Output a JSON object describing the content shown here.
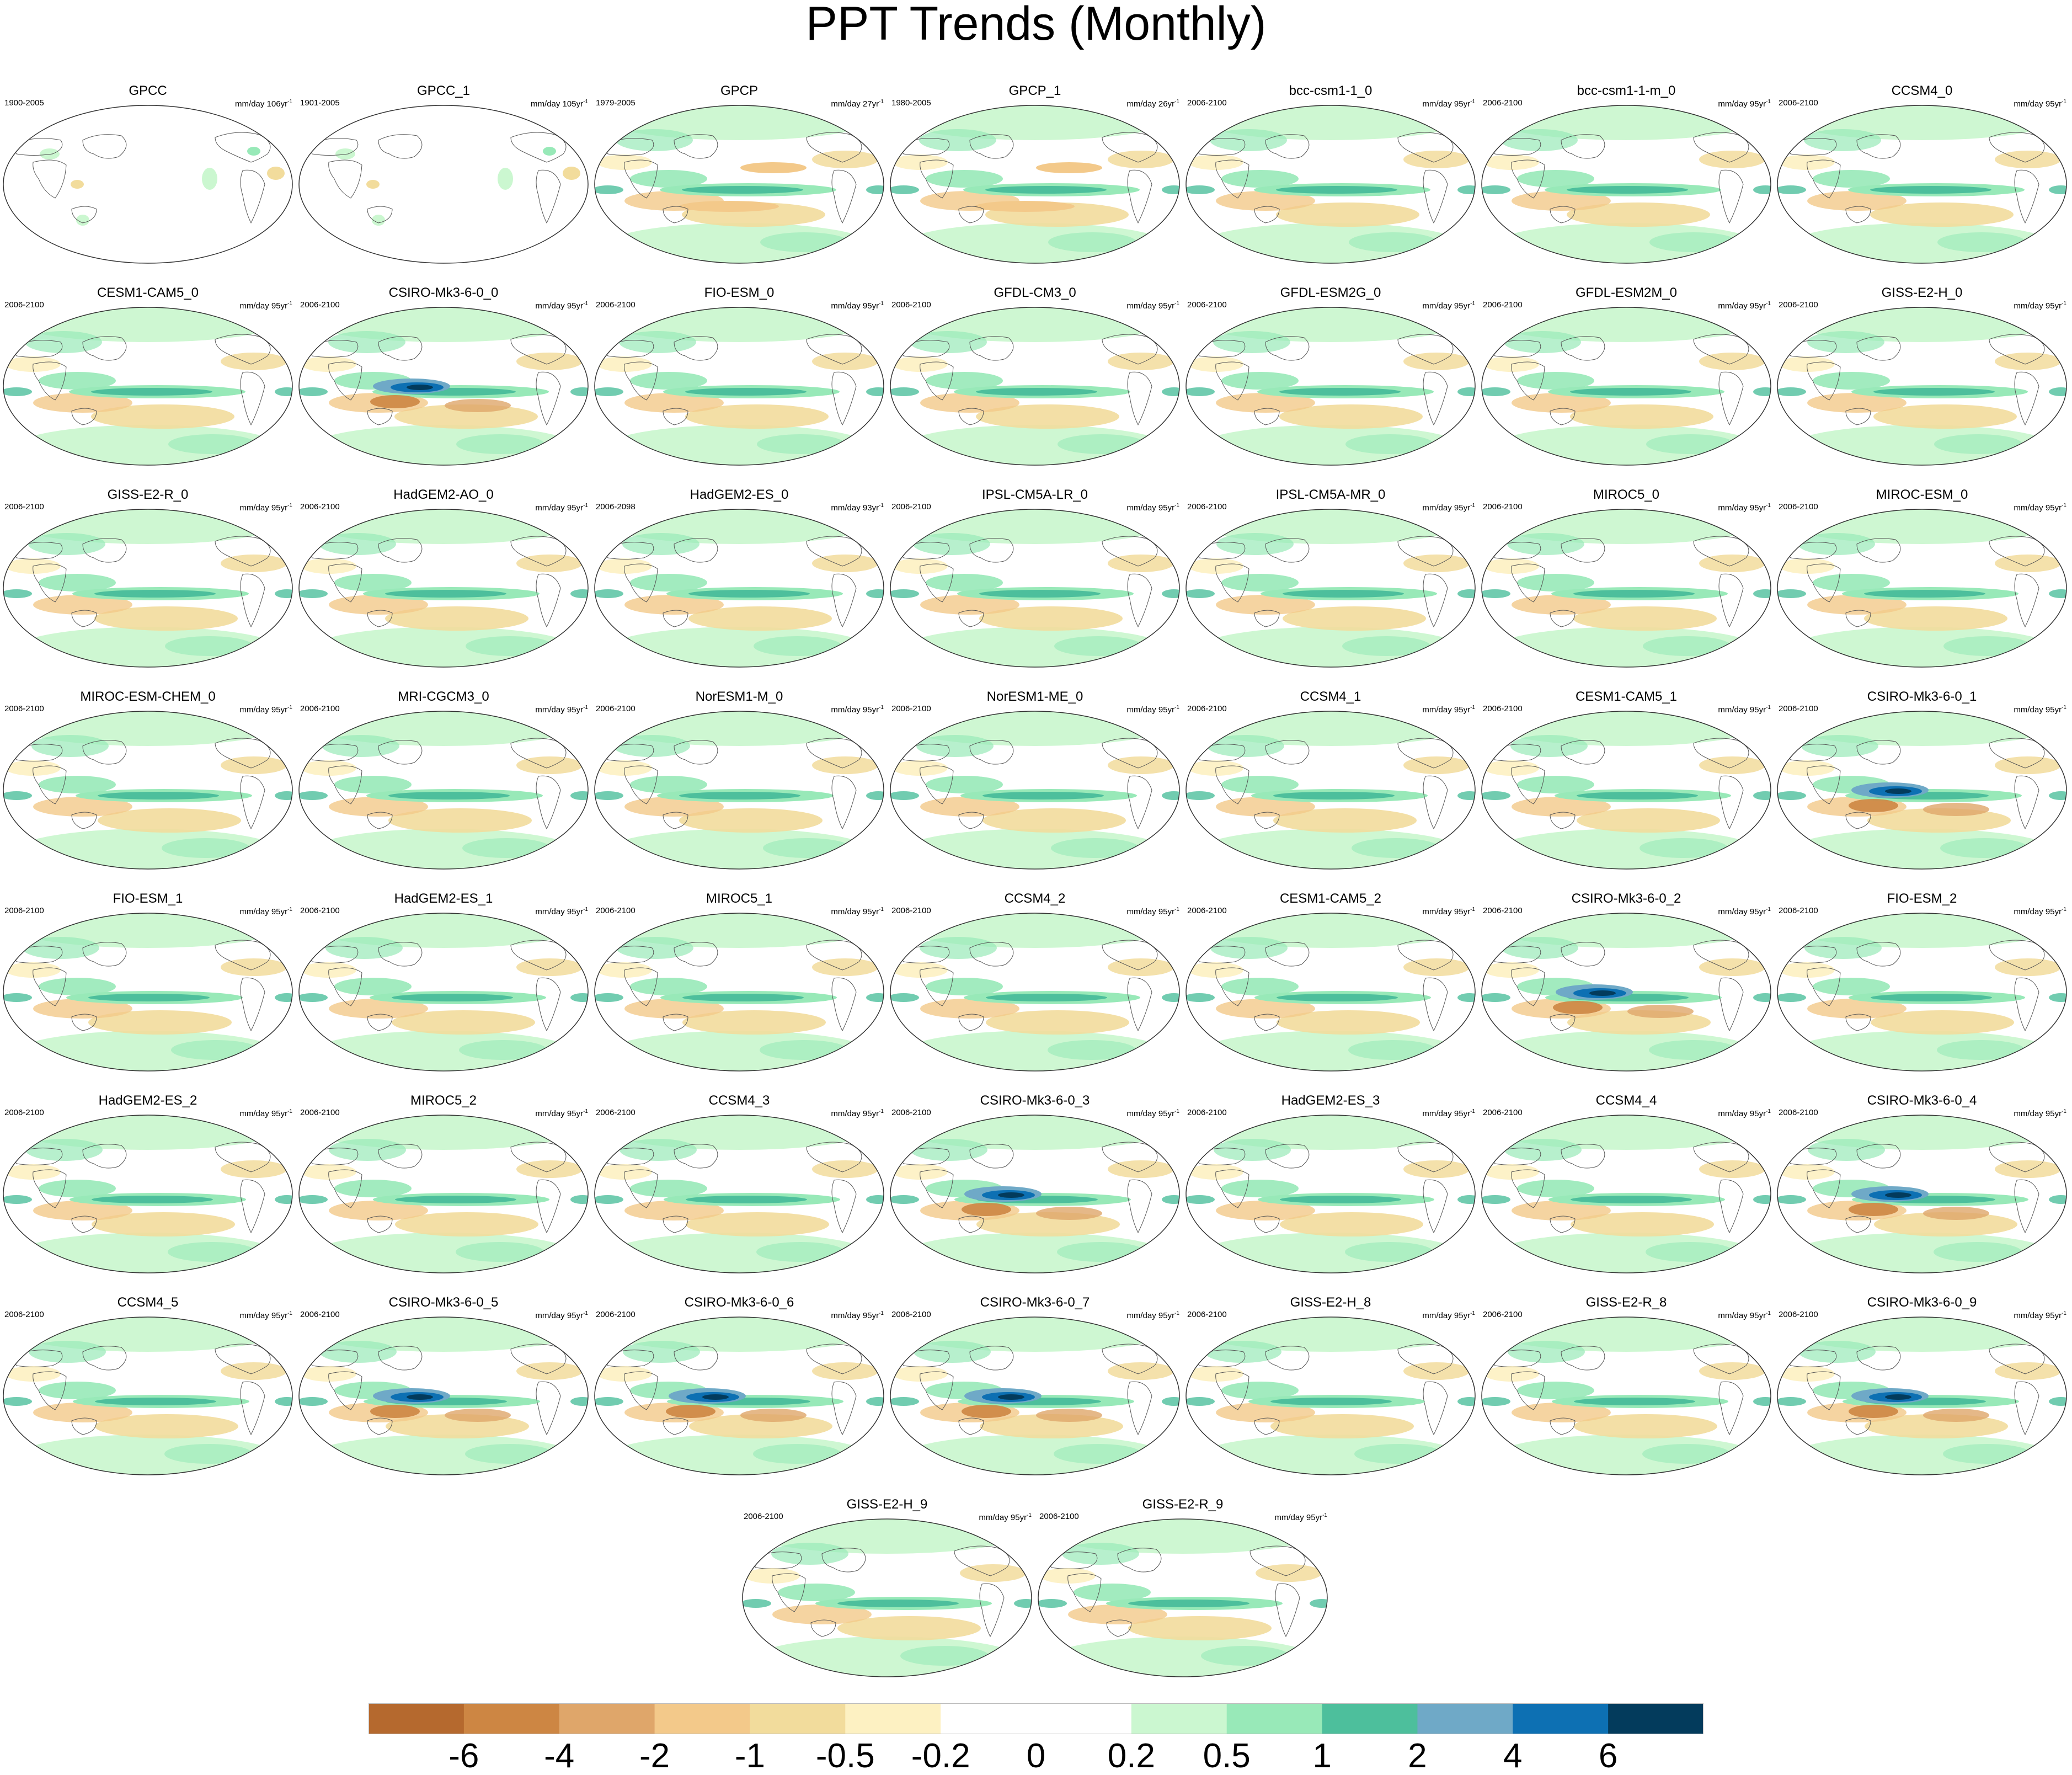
{
  "title": "PPT Trends (Monthly)",
  "units_prefix": "mm/day",
  "colorbar": {
    "colors": [
      "#b5692e",
      "#cd8643",
      "#dfa66a",
      "#f3c98a",
      "#f2dc9c",
      "#fdf1c2",
      "#ffffff",
      "#ffffff",
      "#cbf7d0",
      "#98e9b8",
      "#4dbf9c",
      "#6fa9c7",
      "#0d70b3",
      "#033b5c"
    ],
    "labels": [
      "-6",
      "-4",
      "-2",
      "-1",
      "-0.5",
      "-0.2",
      "0",
      "0.2",
      "0.5",
      "1",
      "2",
      "4",
      "6"
    ]
  },
  "panels": [
    {
      "title": "GPCC",
      "period": "1900-2005",
      "units": "mm/day 106yr",
      "style": "obs"
    },
    {
      "title": "GPCC_1",
      "period": "1901-2005",
      "units": "mm/day 105yr",
      "style": "obs"
    },
    {
      "title": "GPCP",
      "period": "1979-2005",
      "units": "mm/day 27yr",
      "style": "mixed"
    },
    {
      "title": "GPCP_1",
      "period": "1980-2005",
      "units": "mm/day 26yr",
      "style": "mixed"
    },
    {
      "title": "bcc-csm1-1_0",
      "period": "2006-2100",
      "units": "mm/day 95yr",
      "style": "model"
    },
    {
      "title": "bcc-csm1-1-m_0",
      "period": "2006-2100",
      "units": "mm/day 95yr",
      "style": "model"
    },
    {
      "title": "CCSM4_0",
      "period": "2006-2100",
      "units": "mm/day 95yr",
      "style": "model"
    },
    {
      "title": "CESM1-CAM5_0",
      "period": "2006-2100",
      "units": "mm/day 95yr",
      "style": "model"
    },
    {
      "title": "CSIRO-Mk3-6-0_0",
      "period": "2006-2100",
      "units": "mm/day 95yr",
      "style": "strong"
    },
    {
      "title": "FIO-ESM_0",
      "period": "2006-2100",
      "units": "mm/day 95yr",
      "style": "model"
    },
    {
      "title": "GFDL-CM3_0",
      "period": "2006-2100",
      "units": "mm/day 95yr",
      "style": "model"
    },
    {
      "title": "GFDL-ESM2G_0",
      "period": "2006-2100",
      "units": "mm/day 95yr",
      "style": "model"
    },
    {
      "title": "GFDL-ESM2M_0",
      "period": "2006-2100",
      "units": "mm/day 95yr",
      "style": "model"
    },
    {
      "title": "GISS-E2-H_0",
      "period": "2006-2100",
      "units": "mm/day 95yr",
      "style": "model"
    },
    {
      "title": "GISS-E2-R_0",
      "period": "2006-2100",
      "units": "mm/day 95yr",
      "style": "model"
    },
    {
      "title": "HadGEM2-AO_0",
      "period": "2006-2100",
      "units": "mm/day 95yr",
      "style": "model"
    },
    {
      "title": "HadGEM2-ES_0",
      "period": "2006-2098",
      "units": "mm/day 93yr",
      "style": "model"
    },
    {
      "title": "IPSL-CM5A-LR_0",
      "period": "2006-2100",
      "units": "mm/day 95yr",
      "style": "model"
    },
    {
      "title": "IPSL-CM5A-MR_0",
      "period": "2006-2100",
      "units": "mm/day 95yr",
      "style": "model"
    },
    {
      "title": "MIROC5_0",
      "period": "2006-2100",
      "units": "mm/day 95yr",
      "style": "model"
    },
    {
      "title": "MIROC-ESM_0",
      "period": "2006-2100",
      "units": "mm/day 95yr",
      "style": "model"
    },
    {
      "title": "MIROC-ESM-CHEM_0",
      "period": "2006-2100",
      "units": "mm/day 95yr",
      "style": "model"
    },
    {
      "title": "MRI-CGCM3_0",
      "period": "2006-2100",
      "units": "mm/day 95yr",
      "style": "model"
    },
    {
      "title": "NorESM1-M_0",
      "period": "2006-2100",
      "units": "mm/day 95yr",
      "style": "model"
    },
    {
      "title": "NorESM1-ME_0",
      "period": "2006-2100",
      "units": "mm/day 95yr",
      "style": "model"
    },
    {
      "title": "CCSM4_1",
      "period": "2006-2100",
      "units": "mm/day 95yr",
      "style": "model"
    },
    {
      "title": "CESM1-CAM5_1",
      "period": "2006-2100",
      "units": "mm/day 95yr",
      "style": "model"
    },
    {
      "title": "CSIRO-Mk3-6-0_1",
      "period": "2006-2100",
      "units": "mm/day 95yr",
      "style": "strong"
    },
    {
      "title": "FIO-ESM_1",
      "period": "2006-2100",
      "units": "mm/day 95yr",
      "style": "model"
    },
    {
      "title": "HadGEM2-ES_1",
      "period": "2006-2100",
      "units": "mm/day 95yr",
      "style": "model"
    },
    {
      "title": "MIROC5_1",
      "period": "2006-2100",
      "units": "mm/day 95yr",
      "style": "model"
    },
    {
      "title": "CCSM4_2",
      "period": "2006-2100",
      "units": "mm/day 95yr",
      "style": "model"
    },
    {
      "title": "CESM1-CAM5_2",
      "period": "2006-2100",
      "units": "mm/day 95yr",
      "style": "model"
    },
    {
      "title": "CSIRO-Mk3-6-0_2",
      "period": "2006-2100",
      "units": "mm/day 95yr",
      "style": "strong"
    },
    {
      "title": "FIO-ESM_2",
      "period": "2006-2100",
      "units": "mm/day 95yr",
      "style": "model"
    },
    {
      "title": "HadGEM2-ES_2",
      "period": "2006-2100",
      "units": "mm/day 95yr",
      "style": "model"
    },
    {
      "title": "MIROC5_2",
      "period": "2006-2100",
      "units": "mm/day 95yr",
      "style": "model"
    },
    {
      "title": "CCSM4_3",
      "period": "2006-2100",
      "units": "mm/day 95yr",
      "style": "model"
    },
    {
      "title": "CSIRO-Mk3-6-0_3",
      "period": "2006-2100",
      "units": "mm/day 95yr",
      "style": "strong"
    },
    {
      "title": "HadGEM2-ES_3",
      "period": "2006-2100",
      "units": "mm/day 95yr",
      "style": "model"
    },
    {
      "title": "CCSM4_4",
      "period": "2006-2100",
      "units": "mm/day 95yr",
      "style": "model"
    },
    {
      "title": "CSIRO-Mk3-6-0_4",
      "period": "2006-2100",
      "units": "mm/day 95yr",
      "style": "strong"
    },
    {
      "title": "CCSM4_5",
      "period": "2006-2100",
      "units": "mm/day 95yr",
      "style": "model"
    },
    {
      "title": "CSIRO-Mk3-6-0_5",
      "period": "2006-2100",
      "units": "mm/day 95yr",
      "style": "strong"
    },
    {
      "title": "CSIRO-Mk3-6-0_6",
      "period": "2006-2100",
      "units": "mm/day 95yr",
      "style": "strong"
    },
    {
      "title": "CSIRO-Mk3-6-0_7",
      "period": "2006-2100",
      "units": "mm/day 95yr",
      "style": "strong"
    },
    {
      "title": "GISS-E2-H_8",
      "period": "2006-2100",
      "units": "mm/day 95yr",
      "style": "model"
    },
    {
      "title": "GISS-E2-R_8",
      "period": "2006-2100",
      "units": "mm/day 95yr",
      "style": "model"
    },
    {
      "title": "CSIRO-Mk3-6-0_9",
      "period": "2006-2100",
      "units": "mm/day 95yr",
      "style": "strong"
    },
    {
      "title": "GISS-E2-H_9",
      "period": "2006-2100",
      "units": "mm/day 95yr",
      "style": "model"
    },
    {
      "title": "GISS-E2-R_9",
      "period": "2006-2100",
      "units": "mm/day 95yr",
      "style": "model"
    }
  ]
}
